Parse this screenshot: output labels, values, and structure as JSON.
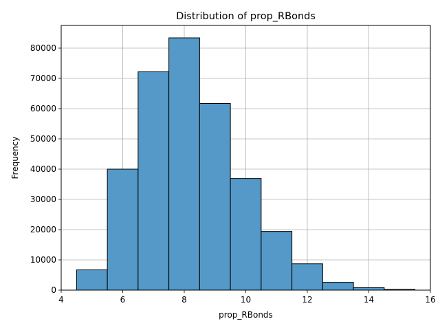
{
  "chart_data": {
    "type": "bar",
    "title": "Distribution of prop_RBonds",
    "xlabel": "prop_RBonds",
    "ylabel": "Frequency",
    "xlim": [
      4,
      16
    ],
    "ylim": [
      0,
      87500
    ],
    "xticks": [
      4,
      6,
      8,
      10,
      12,
      14,
      16
    ],
    "yticks": [
      0,
      10000,
      20000,
      30000,
      40000,
      50000,
      60000,
      70000,
      80000
    ],
    "grid": true,
    "bar_color": "#5499c7",
    "bins": [
      {
        "x0": 4.5,
        "x1": 5.5,
        "value": 6700
      },
      {
        "x0": 5.5,
        "x1": 6.5,
        "value": 40000
      },
      {
        "x0": 6.5,
        "x1": 7.5,
        "value": 72200
      },
      {
        "x0": 7.5,
        "x1": 8.5,
        "value": 83400
      },
      {
        "x0": 8.5,
        "x1": 9.5,
        "value": 61700
      },
      {
        "x0": 9.5,
        "x1": 10.5,
        "value": 36900
      },
      {
        "x0": 10.5,
        "x1": 11.5,
        "value": 19400
      },
      {
        "x0": 11.5,
        "x1": 12.5,
        "value": 8700
      },
      {
        "x0": 12.5,
        "x1": 13.5,
        "value": 2600
      },
      {
        "x0": 13.5,
        "x1": 14.5,
        "value": 800
      },
      {
        "x0": 14.5,
        "x1": 15.5,
        "value": 250
      }
    ]
  }
}
